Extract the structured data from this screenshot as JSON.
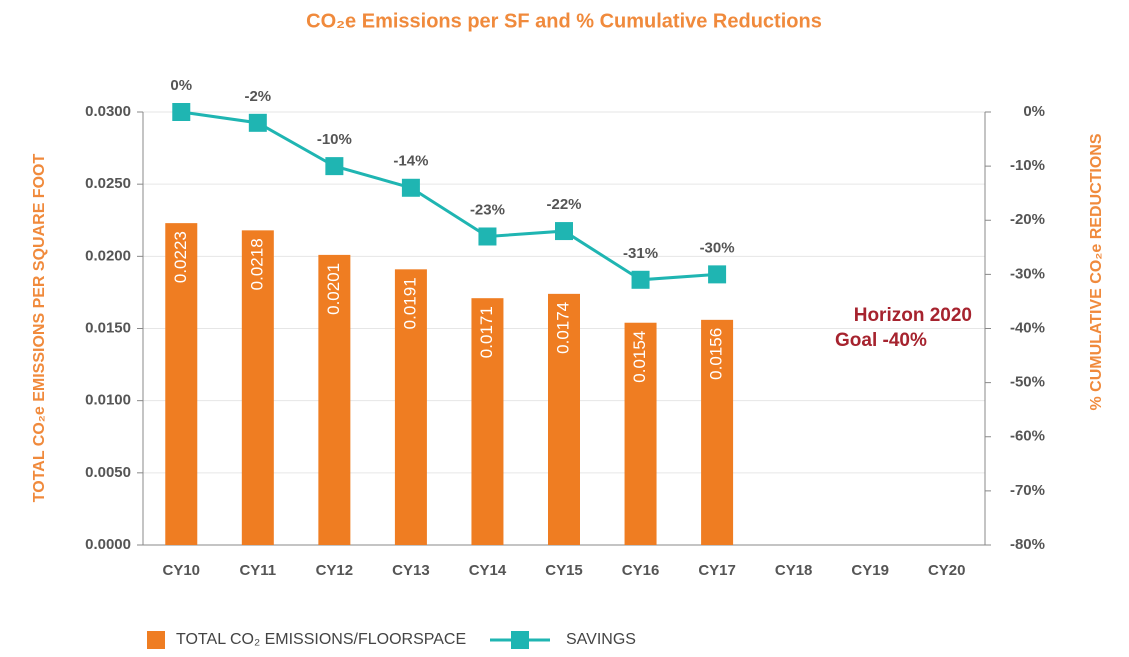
{
  "chart_data": {
    "type": "bar_line",
    "title": "CO₂e Emissions per SF and % Cumulative Reductions",
    "ylabel": "TOTAL CO₂e EMISSIONS PER SQUARE FOOT",
    "y2label": "% CUMULATIVE CO₂e REDUCTIONS",
    "annotation": [
      "Horizon 2020",
      "Goal -40%"
    ],
    "categories": [
      "CY10",
      "CY11",
      "CY12",
      "CY13",
      "CY14",
      "CY15",
      "CY16",
      "CY17",
      "CY18",
      "CY19",
      "CY20"
    ],
    "series": [
      {
        "name": "TOTAL CO₂ EMISSIONS/FLOORSPACE",
        "type": "bar",
        "color": "#ef7d22",
        "values": [
          0.0223,
          0.0218,
          0.0201,
          0.0191,
          0.0171,
          0.0174,
          0.0154,
          0.0156,
          null,
          null,
          null
        ]
      },
      {
        "name": "SAVINGS",
        "type": "line",
        "axis": "y2",
        "color": "#1fb5b2",
        "values": [
          0,
          -2,
          -10,
          -14,
          -23,
          -22,
          -31,
          -30,
          null,
          null,
          null
        ],
        "value_labels": [
          "0%",
          "-2%",
          "-10%",
          "-14%",
          "-23%",
          "-22%",
          "-31%",
          "-30%",
          null,
          null,
          null
        ]
      }
    ],
    "ylim": [
      0,
      0.03
    ],
    "yticks": [
      {
        "value": 0,
        "label": "0.0000"
      },
      {
        "value": 0.005,
        "label": "0.0050"
      },
      {
        "value": 0.01,
        "label": "0.0100"
      },
      {
        "value": 0.015,
        "label": "0.0150"
      },
      {
        "value": 0.02,
        "label": "0.0200"
      },
      {
        "value": 0.025,
        "label": "0.0250"
      },
      {
        "value": 0.03,
        "label": "0.0300"
      }
    ],
    "y2lim": [
      -80,
      0
    ],
    "y2ticks": [
      {
        "value": 0,
        "label": "0%"
      },
      {
        "value": -10,
        "label": "-10%"
      },
      {
        "value": -20,
        "label": "-20%"
      },
      {
        "value": -30,
        "label": "-30%"
      },
      {
        "value": -40,
        "label": "-40%"
      },
      {
        "value": -50,
        "label": "-50%"
      },
      {
        "value": -60,
        "label": "-60%"
      },
      {
        "value": -70,
        "label": "-70%"
      },
      {
        "value": -80,
        "label": "-80%"
      }
    ],
    "grid": true
  }
}
